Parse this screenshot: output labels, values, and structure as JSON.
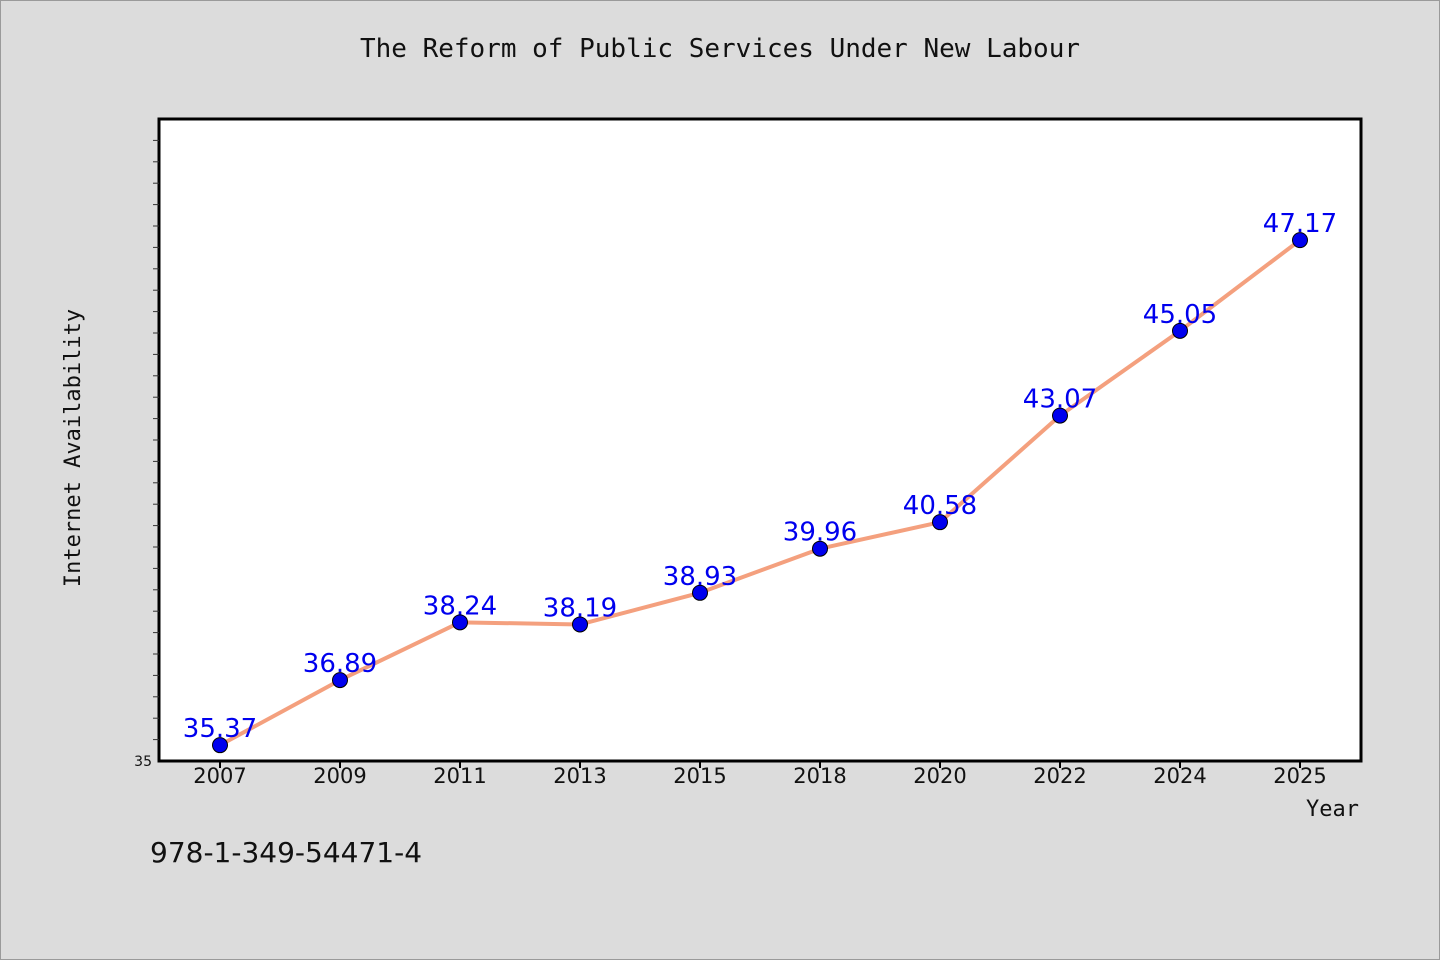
{
  "chart_data": {
    "type": "line",
    "title": "The Reform of Public Services Under New Labour",
    "xlabel": "Year",
    "ylabel": "Internet Availability",
    "categories": [
      "2007",
      "2009",
      "2011",
      "2013",
      "2015",
      "2018",
      "2020",
      "2022",
      "2024",
      "2025"
    ],
    "series": [
      {
        "values": [
          35.37,
          36.89,
          38.24,
          38.19,
          38.93,
          39.96,
          40.58,
          43.07,
          45.05,
          47.17
        ]
      }
    ],
    "data_labels": [
      "35.37",
      "36.89",
      "38.24",
      "38.19",
      "38.93",
      "39.96",
      "40.58",
      "43.07",
      "45.05",
      "47.17"
    ],
    "y_tick_labels": [
      "35"
    ],
    "ylim": [
      35,
      50
    ],
    "grid": false,
    "colors": {
      "line": "#f4a07e",
      "marker": "#0000ee",
      "label": "#0000ee"
    }
  },
  "footer": {
    "isbn": "978-1-349-54471-4"
  }
}
